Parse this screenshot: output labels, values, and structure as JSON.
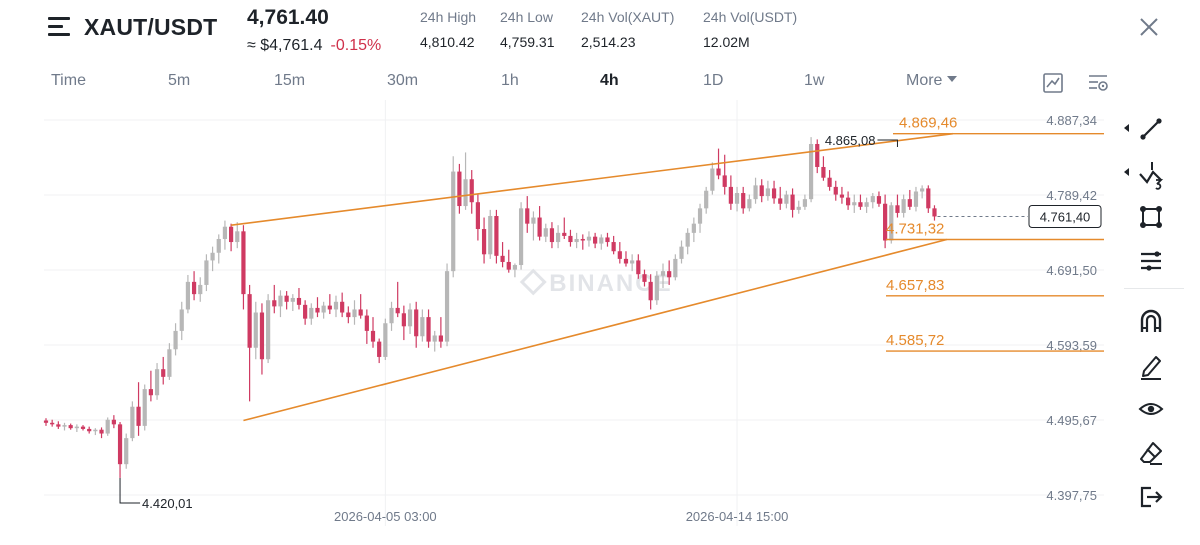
{
  "header": {
    "pair": "XAUT/USDT",
    "price": "4,761.40",
    "approx_price": "≈ $4,761.4",
    "change": "-0.15%",
    "stats": [
      {
        "label": "24h High",
        "value": "4,810.42"
      },
      {
        "label": "24h Low",
        "value": "4,759.31"
      },
      {
        "label": "24h Vol(XAUT)",
        "value": "2,514.23"
      },
      {
        "label": "24h Vol(USDT)",
        "value": "12.02M"
      }
    ]
  },
  "intervals": [
    {
      "label": "Time",
      "active": false
    },
    {
      "label": "5m",
      "active": false
    },
    {
      "label": "15m",
      "active": false
    },
    {
      "label": "30m",
      "active": false
    },
    {
      "label": "1h",
      "active": false
    },
    {
      "label": "4h",
      "active": true
    },
    {
      "label": "1D",
      "active": false
    },
    {
      "label": "1w",
      "active": false
    },
    {
      "label": "More",
      "active": false
    }
  ],
  "toolbar_icons": [
    "trend-line-icon",
    "fib-tool-icon",
    "rectangle-tool-icon",
    "indicator-settings-icon",
    "magnet-icon",
    "pencil-icon",
    "eye-icon",
    "eraser-icon",
    "exit-icon"
  ],
  "colors": {
    "up": "#b7b7b7",
    "down": "#cf3a62",
    "drawing": "#e58a2c",
    "text": "#1e2329",
    "muted": "#707a8a"
  },
  "chart_data": {
    "type": "candlestick",
    "watermark": "BINANCE",
    "y_ticks": [
      "4.887,34",
      "4.789,42",
      "4.691,50",
      "4.593,59",
      "4.495,67",
      "4.397,75"
    ],
    "ylim": [
      4370,
      4900
    ],
    "x_ticks": [
      {
        "label": "2026-04-05 03:00",
        "index": 55
      },
      {
        "label": "2026-04-14 15:00",
        "index": 112
      }
    ],
    "current_price_label": "4.761,40",
    "current_price": 4761.4,
    "high_annotation": {
      "label": "4.865,08",
      "value": 4865.08,
      "index": 138
    },
    "low_annotation": {
      "label": "4.420,01",
      "value": 4420.01,
      "index": 12
    },
    "horizontal_levels": [
      {
        "label": "4.869,46",
        "value": 4869.46
      },
      {
        "label": "4.731,32",
        "value": 4731.32
      },
      {
        "label": "4.657,83",
        "value": 4657.83
      },
      {
        "label": "4.585,72",
        "value": 4585.72
      }
    ],
    "trend_lines": [
      {
        "from": [
          30,
          4750
        ],
        "to": [
          147,
          4869.46
        ]
      },
      {
        "from": [
          32,
          4495
        ],
        "to": [
          146,
          4731.32
        ]
      }
    ],
    "candles": [
      [
        4495,
        4498,
        4488,
        4492
      ],
      [
        4492,
        4496,
        4487,
        4490
      ],
      [
        4490,
        4494,
        4484,
        4487
      ],
      [
        4487,
        4492,
        4482,
        4489
      ],
      [
        4489,
        4491,
        4483,
        4485
      ],
      [
        4485,
        4490,
        4480,
        4487
      ],
      [
        4487,
        4489,
        4482,
        4484
      ],
      [
        4484,
        4487,
        4478,
        4481
      ],
      [
        4481,
        4485,
        4476,
        4483
      ],
      [
        4483,
        4486,
        4472,
        4478
      ],
      [
        4478,
        4499,
        4475,
        4496
      ],
      [
        4496,
        4502,
        4485,
        4490
      ],
      [
        4490,
        4493,
        4420,
        4438
      ],
      [
        4438,
        4478,
        4432,
        4472
      ],
      [
        4472,
        4520,
        4468,
        4513
      ],
      [
        4513,
        4545,
        4475,
        4488
      ],
      [
        4488,
        4542,
        4482,
        4536
      ],
      [
        4536,
        4560,
        4520,
        4528
      ],
      [
        4528,
        4570,
        4522,
        4562
      ],
      [
        4562,
        4578,
        4542,
        4552
      ],
      [
        4552,
        4596,
        4548,
        4588
      ],
      [
        4588,
        4622,
        4580,
        4612
      ],
      [
        4612,
        4650,
        4600,
        4640
      ],
      [
        4640,
        4685,
        4635,
        4676
      ],
      [
        4676,
        4690,
        4652,
        4660
      ],
      [
        4660,
        4682,
        4650,
        4672
      ],
      [
        4672,
        4712,
        4664,
        4704
      ],
      [
        4704,
        4722,
        4690,
        4714
      ],
      [
        4714,
        4738,
        4700,
        4732
      ],
      [
        4732,
        4756,
        4718,
        4748
      ],
      [
        4748,
        4752,
        4716,
        4728
      ],
      [
        4728,
        4754,
        4720,
        4742
      ],
      [
        4742,
        4750,
        4640,
        4660
      ],
      [
        4660,
        4672,
        4520,
        4590
      ],
      [
        4590,
        4650,
        4575,
        4636
      ],
      [
        4636,
        4648,
        4555,
        4575
      ],
      [
        4575,
        4660,
        4570,
        4652
      ],
      [
        4652,
        4672,
        4635,
        4644
      ],
      [
        4644,
        4665,
        4630,
        4658
      ],
      [
        4658,
        4664,
        4640,
        4650
      ],
      [
        4650,
        4660,
        4638,
        4655
      ],
      [
        4655,
        4668,
        4640,
        4646
      ],
      [
        4646,
        4652,
        4620,
        4628
      ],
      [
        4628,
        4648,
        4620,
        4642
      ],
      [
        4642,
        4656,
        4630,
        4636
      ],
      [
        4636,
        4650,
        4628,
        4645
      ],
      [
        4645,
        4660,
        4634,
        4640
      ],
      [
        4640,
        4658,
        4630,
        4650
      ],
      [
        4650,
        4662,
        4630,
        4636
      ],
      [
        4636,
        4644,
        4622,
        4630
      ],
      [
        4630,
        4652,
        4620,
        4640
      ],
      [
        4640,
        4660,
        4628,
        4632
      ],
      [
        4632,
        4640,
        4595,
        4612
      ],
      [
        4612,
        4630,
        4590,
        4598
      ],
      [
        4598,
        4602,
        4570,
        4578
      ],
      [
        4578,
        4628,
        4574,
        4622
      ],
      [
        4622,
        4650,
        4612,
        4642
      ],
      [
        4642,
        4676,
        4630,
        4635
      ],
      [
        4635,
        4645,
        4600,
        4618
      ],
      [
        4618,
        4648,
        4608,
        4640
      ],
      [
        4640,
        4650,
        4590,
        4605
      ],
      [
        4605,
        4640,
        4598,
        4630
      ],
      [
        4630,
        4640,
        4590,
        4598
      ],
      [
        4598,
        4612,
        4585,
        4606
      ],
      [
        4606,
        4630,
        4590,
        4598
      ],
      [
        4598,
        4700,
        4592,
        4690
      ],
      [
        4690,
        4840,
        4682,
        4820
      ],
      [
        4820,
        4830,
        4765,
        4775
      ],
      [
        4775,
        4845,
        4770,
        4810
      ],
      [
        4810,
        4822,
        4765,
        4780
      ],
      [
        4780,
        4790,
        4730,
        4745
      ],
      [
        4745,
        4760,
        4700,
        4712
      ],
      [
        4712,
        4770,
        4706,
        4762
      ],
      [
        4762,
        4770,
        4700,
        4710
      ],
      [
        4710,
        4728,
        4695,
        4702
      ],
      [
        4702,
        4718,
        4688,
        4692
      ],
      [
        4692,
        4700,
        4682,
        4698
      ],
      [
        4698,
        4780,
        4692,
        4772
      ],
      [
        4772,
        4788,
        4740,
        4752
      ],
      [
        4752,
        4768,
        4730,
        4760
      ],
      [
        4760,
        4775,
        4730,
        4735
      ],
      [
        4735,
        4752,
        4728,
        4746
      ],
      [
        4746,
        4754,
        4720,
        4728
      ],
      [
        4728,
        4750,
        4720,
        4740
      ],
      [
        4740,
        4760,
        4732,
        4736
      ],
      [
        4736,
        4744,
        4722,
        4728
      ],
      [
        4728,
        4740,
        4720,
        4732
      ],
      [
        4732,
        4738,
        4718,
        4730
      ],
      [
        4730,
        4742,
        4722,
        4735
      ],
      [
        4735,
        4740,
        4720,
        4726
      ],
      [
        4726,
        4738,
        4718,
        4734
      ],
      [
        4734,
        4740,
        4722,
        4728
      ],
      [
        4728,
        4736,
        4712,
        4716
      ],
      [
        4716,
        4728,
        4700,
        4706
      ],
      [
        4706,
        4716,
        4696,
        4700
      ],
      [
        4700,
        4712,
        4690,
        4704
      ],
      [
        4704,
        4712,
        4680,
        4686
      ],
      [
        4686,
        4692,
        4670,
        4676
      ],
      [
        4676,
        4686,
        4640,
        4652
      ],
      [
        4652,
        4690,
        4646,
        4684
      ],
      [
        4684,
        4700,
        4668,
        4690
      ],
      [
        4690,
        4704,
        4672,
        4682
      ],
      [
        4682,
        4712,
        4678,
        4706
      ],
      [
        4706,
        4730,
        4700,
        4722
      ],
      [
        4722,
        4746,
        4712,
        4740
      ],
      [
        4740,
        4760,
        4728,
        4752
      ],
      [
        4752,
        4778,
        4740,
        4772
      ],
      [
        4772,
        4800,
        4765,
        4795
      ],
      [
        4795,
        4832,
        4790,
        4824
      ],
      [
        4824,
        4850,
        4810,
        4815
      ],
      [
        4815,
        4842,
        4790,
        4800
      ],
      [
        4800,
        4815,
        4770,
        4778
      ],
      [
        4778,
        4800,
        4768,
        4792
      ],
      [
        4792,
        4800,
        4765,
        4772
      ],
      [
        4772,
        4790,
        4768,
        4784
      ],
      [
        4784,
        4812,
        4778,
        4802
      ],
      [
        4802,
        4810,
        4780,
        4788
      ],
      [
        4788,
        4808,
        4782,
        4798
      ],
      [
        4798,
        4808,
        4778,
        4785
      ],
      [
        4785,
        4800,
        4770,
        4778
      ],
      [
        4778,
        4795,
        4772,
        4790
      ],
      [
        4790,
        4798,
        4760,
        4770
      ],
      [
        4770,
        4782,
        4765,
        4774
      ],
      [
        4774,
        4790,
        4770,
        4784
      ],
      [
        4784,
        4865,
        4780,
        4856
      ],
      [
        4856,
        4862,
        4818,
        4826
      ],
      [
        4826,
        4840,
        4808,
        4812
      ],
      [
        4812,
        4822,
        4795,
        4800
      ],
      [
        4800,
        4808,
        4782,
        4790
      ],
      [
        4790,
        4800,
        4778,
        4786
      ],
      [
        4786,
        4794,
        4770,
        4776
      ],
      [
        4776,
        4790,
        4766,
        4780
      ],
      [
        4780,
        4790,
        4770,
        4774
      ],
      [
        4774,
        4786,
        4766,
        4780
      ],
      [
        4780,
        4792,
        4772,
        4788
      ],
      [
        4788,
        4794,
        4774,
        4778
      ],
      [
        4778,
        4790,
        4720,
        4730
      ],
      [
        4730,
        4780,
        4726,
        4776
      ],
      [
        4776,
        4790,
        4760,
        4766
      ],
      [
        4766,
        4790,
        4760,
        4784
      ],
      [
        4784,
        4796,
        4770,
        4774
      ],
      [
        4774,
        4800,
        4768,
        4794
      ],
      [
        4794,
        4802,
        4785,
        4798
      ],
      [
        4798,
        4802,
        4766,
        4772
      ],
      [
        4772,
        4776,
        4756,
        4761.4
      ]
    ]
  }
}
